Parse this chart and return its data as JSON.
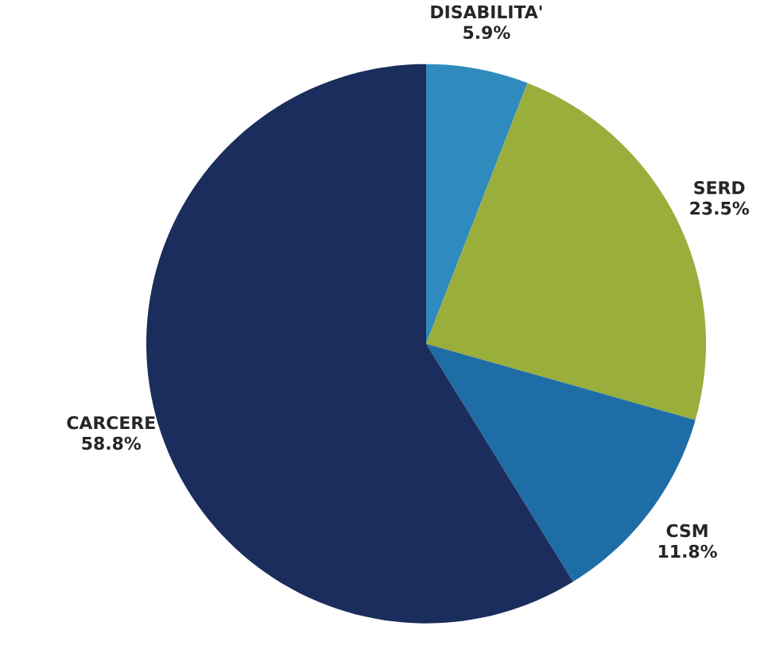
{
  "chart_data": {
    "type": "pie",
    "categories": [
      "DISABILITA'",
      "SERD",
      "CSM",
      "CARCERE"
    ],
    "values": [
      5.9,
      23.5,
      11.8,
      58.8
    ],
    "colors": [
      "#2f8bbd",
      "#9aae3c",
      "#1f6da6",
      "#1b2d5c"
    ],
    "value_labels": [
      "5.9%",
      "23.5%",
      "11.8%",
      "58.8%"
    ]
  }
}
